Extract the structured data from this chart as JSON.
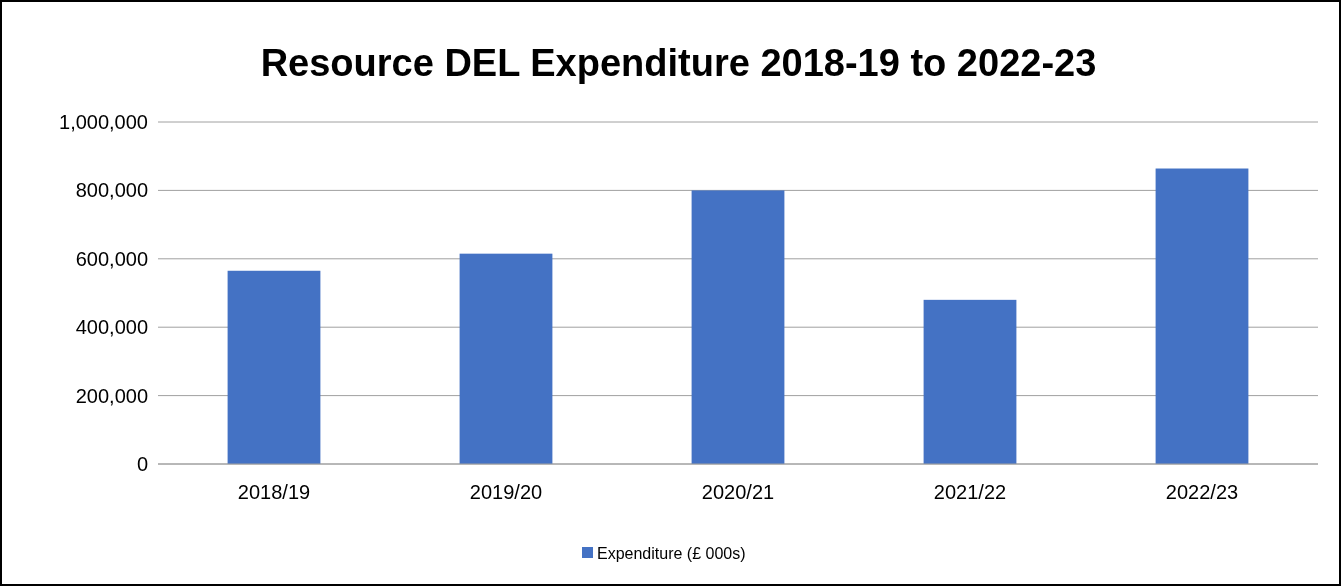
{
  "chart_data": {
    "type": "bar",
    "title": "Resource DEL Expenditure 2018-19 to 2022-23",
    "categories": [
      "2018/19",
      "2019/20",
      "2020/21",
      "2021/22",
      "2022/23"
    ],
    "series": [
      {
        "name": "Expenditure (£ 000s)",
        "color": "#4472c4",
        "values": [
          565000,
          615000,
          800000,
          480000,
          864000
        ]
      }
    ],
    "ylim": [
      0,
      1000000
    ],
    "yticks": [
      {
        "value": 0,
        "label": "0"
      },
      {
        "value": 200000,
        "label": "200,000"
      },
      {
        "value": 400000,
        "label": "400,000"
      },
      {
        "value": 600000,
        "label": "600,000"
      },
      {
        "value": 800000,
        "label": "800,000"
      },
      {
        "value": 1000000,
        "label": "1,000,000"
      }
    ],
    "grid": "y",
    "legend": "bottom"
  }
}
